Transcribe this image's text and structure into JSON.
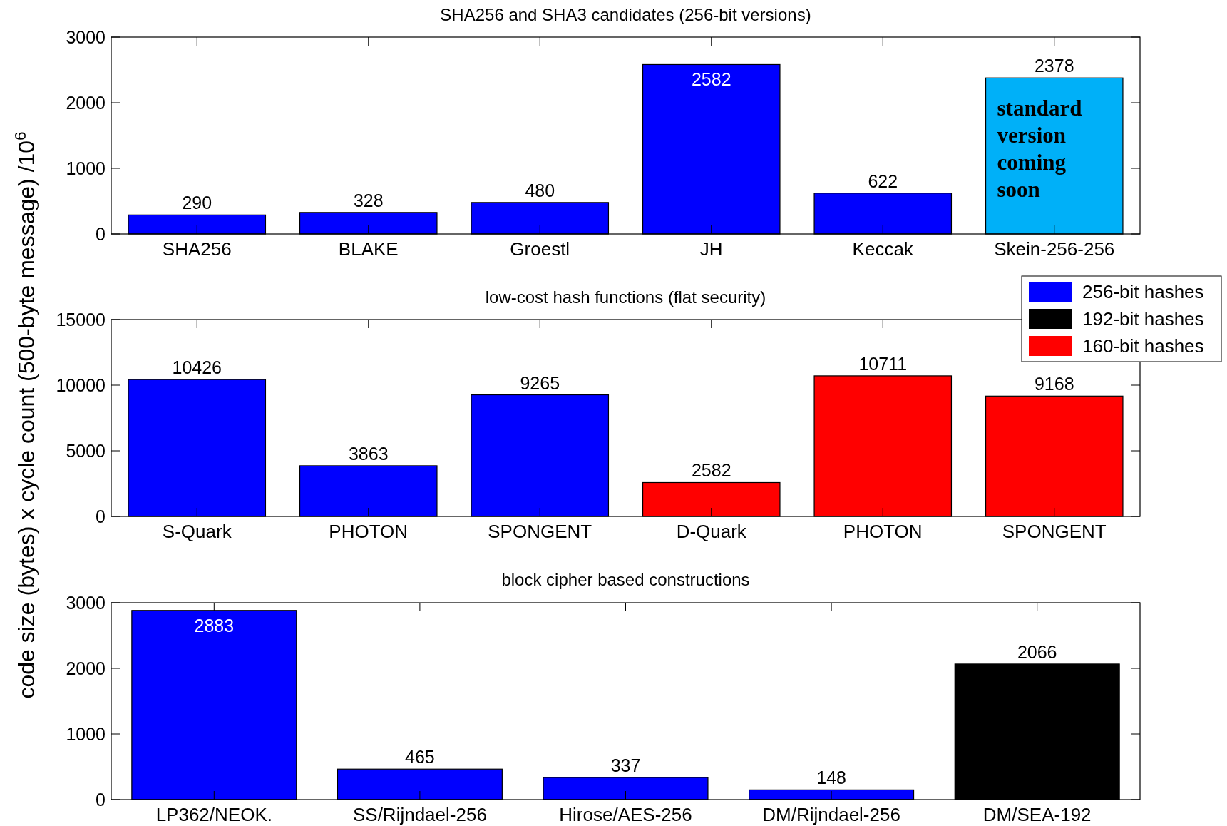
{
  "chart_data": [
    {
      "type": "bar",
      "title": "SHA256 and SHA3 candidates (256-bit versions)",
      "ylabel": "code size (bytes) x cycle count (500-byte message) /10$^{6}$",
      "categories": [
        "SHA256",
        "BLAKE",
        "Groestl",
        "JH",
        "Keccak",
        "Skein-256-256"
      ],
      "values": [
        290,
        328,
        480,
        2582,
        622,
        2378
      ],
      "colors": [
        "#0000ff",
        "#0000ff",
        "#0000ff",
        "#0000ff",
        "#0000ff",
        "#00b0f8"
      ],
      "ylim": [
        0,
        3000
      ],
      "yticks": [
        0,
        1000,
        2000,
        3000
      ],
      "data_labels": true,
      "annotations": [
        "standard version coming soon"
      ]
    },
    {
      "type": "bar",
      "title": "low-cost hash functions (flat security)",
      "categories": [
        "S-Quark",
        "PHOTON",
        "SPONGENT",
        "D-Quark",
        "PHOTON",
        "SPONGENT"
      ],
      "series": [
        {
          "name": "256-bit hashes",
          "color": "#0000ff",
          "values": [
            10426,
            3863,
            9265,
            null,
            null,
            null
          ]
        },
        {
          "name": "160-bit hashes",
          "color": "#ff0000",
          "values": [
            null,
            null,
            null,
            2582,
            10711,
            9168
          ]
        }
      ],
      "ylim": [
        0,
        15000
      ],
      "yticks": [
        0,
        5000,
        10000,
        15000
      ],
      "data_labels": true,
      "legend": "top right"
    },
    {
      "type": "bar",
      "title": "block cipher based constructions",
      "categories": [
        "LP362/NEOK.",
        "SS/Rijndael-256",
        "Hirose/AES-256",
        "DM/Rijndael-256",
        "DM/SEA-192"
      ],
      "series": [
        {
          "name": "256-bit hashes",
          "color": "#0000ff",
          "values": [
            2883,
            465,
            337,
            148,
            null
          ]
        },
        {
          "name": "192-bit hashes",
          "color": "#000000",
          "values": [
            null,
            null,
            null,
            null,
            2066
          ]
        }
      ],
      "ylim": [
        0,
        3000
      ],
      "yticks": [
        0,
        1000,
        2000,
        3000
      ],
      "data_labels": true
    }
  ]
}
